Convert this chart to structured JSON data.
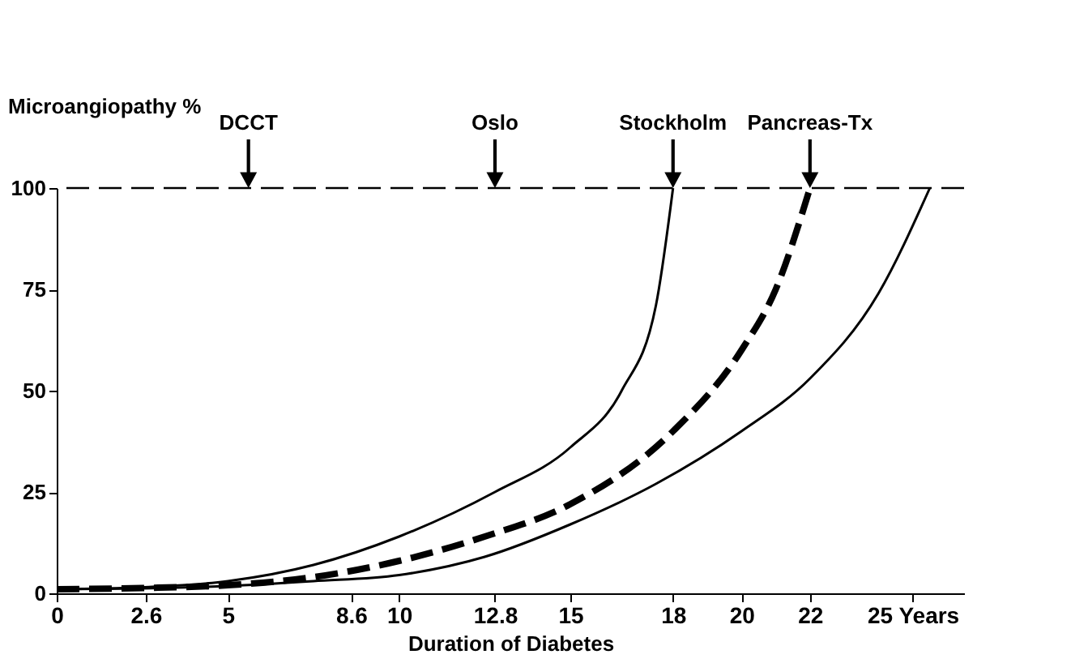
{
  "chart_data": {
    "type": "line",
    "xlabel": "Duration of Diabetes",
    "ylabel": "Microangiopathy %",
    "xlim": [
      0,
      26.5
    ],
    "ylim": [
      0,
      100
    ],
    "xticks": [
      0,
      2.6,
      5,
      8.6,
      10,
      12.8,
      15,
      18,
      20,
      22,
      {
        "value": 25,
        "label": "25 Years"
      }
    ],
    "yticks": [
      0,
      25,
      50,
      75,
      100
    ],
    "grid": false,
    "series": [
      {
        "color": "#000000",
        "line_style": "solid",
        "x": [
          0,
          2.5,
          5,
          7.5,
          10,
          12.8,
          15,
          16.5,
          17.5,
          18
        ],
        "values": [
          1,
          1.5,
          3,
          7,
          14,
          25,
          36,
          50,
          71,
          100
        ]
      },
      {
        "color": "#000000",
        "line_style": "dashed",
        "x": [
          0,
          2.5,
          5,
          7.5,
          10,
          12.5,
          15,
          18,
          20,
          21,
          22
        ],
        "values": [
          1,
          1.3,
          2,
          4,
          8,
          14,
          22,
          40,
          60,
          75,
          100
        ]
      },
      {
        "color": "#000000",
        "line_style": "solid",
        "x": [
          0,
          2.5,
          5,
          7.5,
          10,
          12.5,
          15,
          17.5,
          20,
          22,
          24,
          25.5
        ],
        "values": [
          1,
          1.2,
          1.8,
          3,
          4.5,
          9,
          17,
          27,
          40,
          53,
          74,
          100
        ]
      }
    ],
    "ref_lines": [
      {
        "axis": "y",
        "value": 100,
        "line_style": "dashed",
        "color": "#000000"
      }
    ],
    "annotations": [
      {
        "text": "DCCT",
        "x": 5.6,
        "y": 100
      },
      {
        "text": "Oslo",
        "x": 12.8,
        "y": 100
      },
      {
        "text": "Stockholm",
        "x": 18,
        "y": 100
      },
      {
        "text": "Pancreas-Tx",
        "x": 22,
        "y": 100
      }
    ]
  }
}
